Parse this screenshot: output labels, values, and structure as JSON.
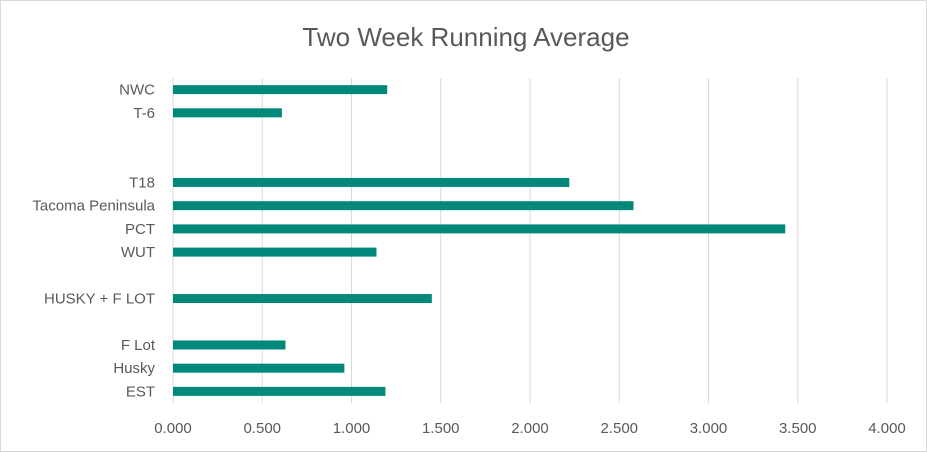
{
  "chart_data": {
    "type": "bar",
    "orientation": "horizontal",
    "title": "Two Week Running Average",
    "xlabel": "",
    "ylabel": "",
    "xlim": [
      0,
      4
    ],
    "x_ticks": [
      "0.000",
      "0.500",
      "1.000",
      "1.500",
      "2.000",
      "2.500",
      "3.000",
      "3.500",
      "4.000"
    ],
    "x_tick_values": [
      0,
      0.5,
      1,
      1.5,
      2,
      2.5,
      3,
      3.5,
      4
    ],
    "grid": "vertical",
    "legend": "none",
    "bar_color": "#00897b",
    "categories": [
      "NWC",
      "T-6",
      "",
      "",
      "T18",
      "Tacoma Peninsula",
      "PCT",
      "WUT",
      "",
      "HUSKY + F LOT",
      "",
      "F Lot",
      "Husky",
      "EST"
    ],
    "values": [
      1.2,
      0.61,
      null,
      null,
      2.22,
      2.58,
      3.43,
      1.14,
      null,
      1.45,
      null,
      0.63,
      0.96,
      1.19
    ]
  }
}
